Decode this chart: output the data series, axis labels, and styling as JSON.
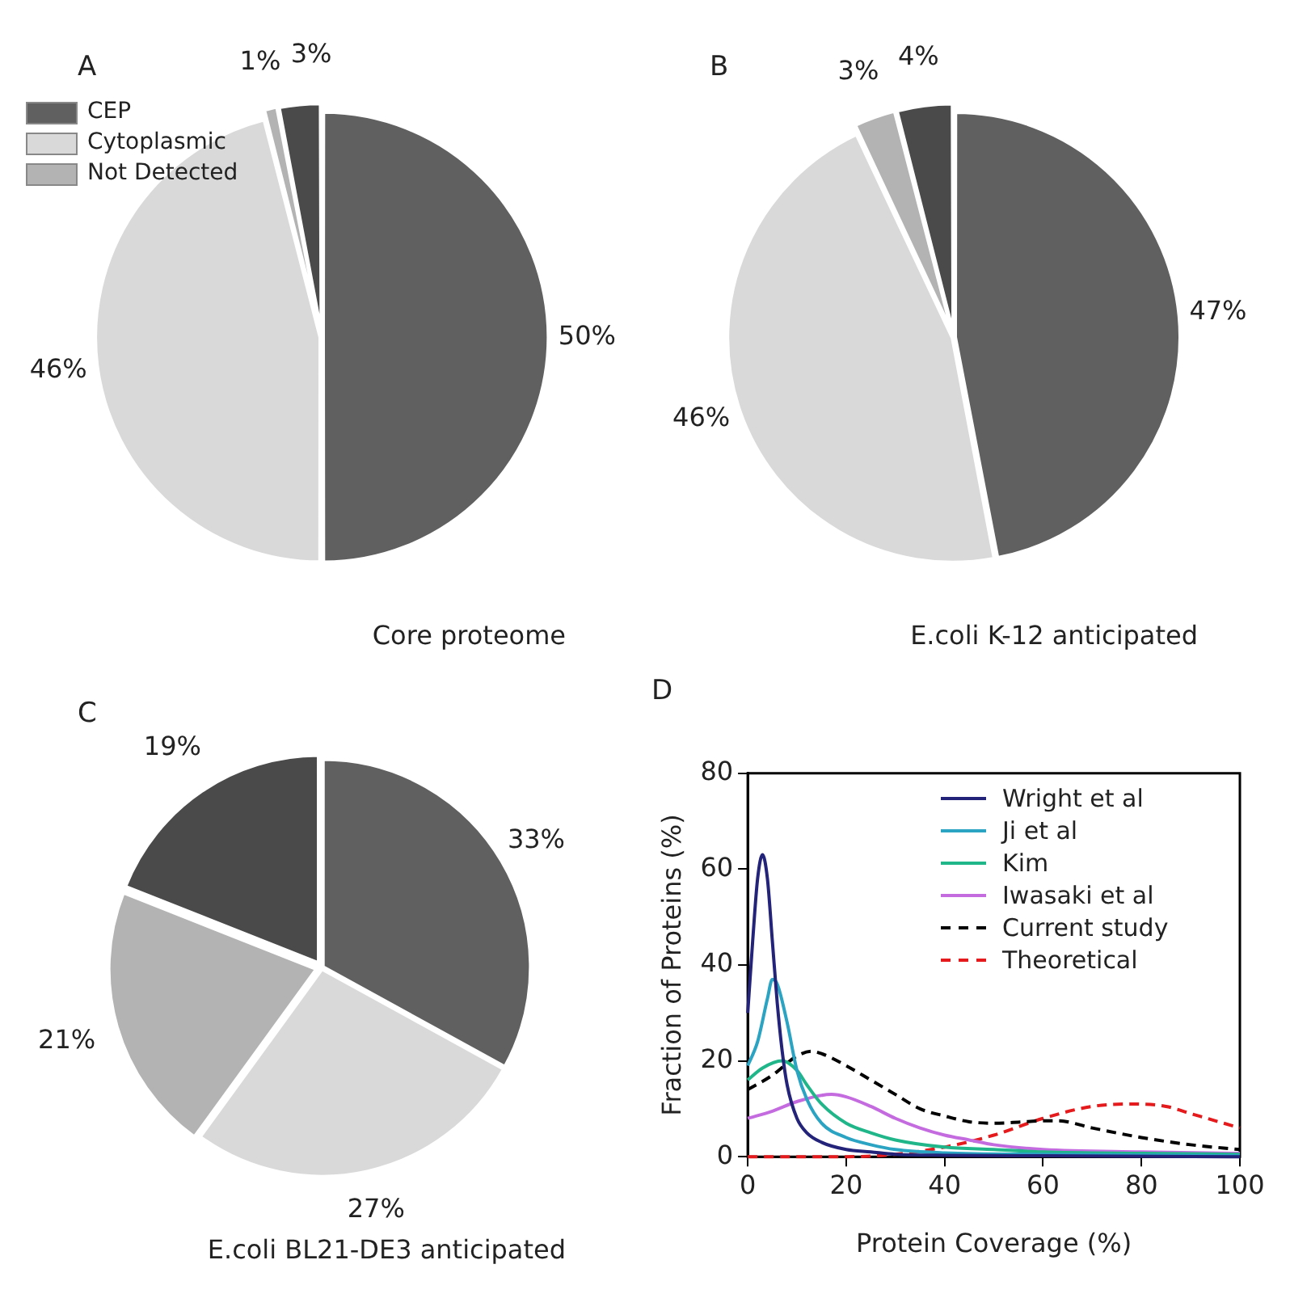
{
  "chart_data": [
    {
      "type": "pie",
      "title": "A",
      "subtitle": "Core proteome",
      "categories": [
        "CEP",
        "Cytoplasmic",
        "Not Detected",
        null
      ],
      "values": [
        50,
        46,
        1,
        3
      ],
      "value_labels": [
        "50%",
        "46%",
        "1%",
        "3%"
      ],
      "colors": [
        "#606060",
        "#d9d9d9",
        "#b3b3b3",
        "#4a4a4a"
      ],
      "legend": "top left"
    },
    {
      "type": "pie",
      "title": "B",
      "subtitle": "E.coli K-12 anticipated",
      "categories": [
        null,
        null,
        null,
        null
      ],
      "values": [
        47,
        46,
        3,
        4
      ],
      "value_labels": [
        "47%",
        "46%",
        "3%",
        "4%"
      ],
      "colors": [
        "#606060",
        "#d9d9d9",
        "#b3b3b3",
        "#4a4a4a"
      ]
    },
    {
      "type": "pie",
      "title": "C",
      "subtitle": "E.coli BL21-DE3 anticipated",
      "categories": [
        null,
        null,
        null,
        null
      ],
      "values": [
        33,
        27,
        21,
        19
      ],
      "value_labels": [
        "33%",
        "27%",
        "21%",
        "19%"
      ],
      "colors": [
        "#606060",
        "#d9d9d9",
        "#b3b3b3",
        "#4a4a4a"
      ]
    },
    {
      "type": "line",
      "title": "D",
      "xlabel": "Protein Coverage (%)",
      "ylabel": "Fraction of Proteins (%)",
      "xlim": [
        0,
        100
      ],
      "xticks": [
        0,
        20,
        40,
        60,
        80,
        100
      ],
      "ylim": [
        0,
        80
      ],
      "yticks": [
        0,
        20,
        40,
        60,
        80
      ],
      "grid": false,
      "legend": "top right",
      "series": [
        {
          "name": "Wright et al",
          "color": "#23237a",
          "line_style": "solid",
          "x": [
            0,
            1,
            2,
            3,
            4,
            5,
            6,
            7,
            8,
            10,
            12,
            15,
            20,
            25,
            30,
            40,
            60,
            100
          ],
          "values": [
            30,
            45,
            58,
            63,
            58,
            45,
            32,
            22,
            15,
            8,
            5,
            3,
            1.5,
            1,
            0.5,
            0.3,
            0.2,
            0
          ]
        },
        {
          "name": "Ji et al",
          "color": "#2ba3c2",
          "line_style": "solid",
          "x": [
            0,
            2,
            4,
            5,
            6,
            8,
            10,
            12,
            15,
            20,
            25,
            30,
            40,
            60,
            100
          ],
          "values": [
            19,
            24,
            33,
            37,
            36,
            28,
            18,
            12,
            7,
            4,
            2.5,
            1.5,
            0.8,
            0.5,
            0.2
          ]
        },
        {
          "name": "Kim",
          "color": "#20b68a",
          "line_style": "solid",
          "x": [
            0,
            3,
            7,
            10,
            12,
            15,
            20,
            25,
            30,
            40,
            50,
            60,
            80,
            100
          ],
          "values": [
            16,
            18.5,
            20,
            18,
            15,
            11,
            7,
            5,
            3.5,
            2,
            1.5,
            1,
            0.7,
            0.5
          ]
        },
        {
          "name": "Iwasaki et al",
          "color": "#c46be0",
          "line_style": "solid",
          "x": [
            0,
            5,
            10,
            17,
            20,
            25,
            30,
            35,
            40,
            45,
            50,
            60,
            80,
            100
          ],
          "values": [
            8,
            9.5,
            11.5,
            13,
            12.5,
            10.5,
            8,
            6,
            4.5,
            3.5,
            2.5,
            1.5,
            1,
            0.7
          ]
        },
        {
          "name": "Current study",
          "color": "#000000",
          "line_style": "dashed",
          "x": [
            0,
            5,
            10,
            13,
            15,
            20,
            25,
            30,
            35,
            40,
            45,
            50,
            55,
            60,
            63,
            70,
            80,
            90,
            100
          ],
          "values": [
            14,
            17,
            21,
            22,
            21.5,
            19,
            16,
            13,
            10,
            8.5,
            7.3,
            7,
            7.2,
            7.5,
            7.5,
            6,
            4,
            2.5,
            1.5
          ]
        },
        {
          "name": "Theoretical",
          "color": "#e41a1c",
          "line_style": "dashed",
          "x": [
            0,
            20,
            30,
            40,
            50,
            60,
            70,
            78,
            85,
            90,
            100
          ],
          "values": [
            0,
            0,
            0.5,
            2,
            4.5,
            8,
            10.5,
            11,
            10.5,
            9,
            6
          ]
        }
      ]
    }
  ]
}
